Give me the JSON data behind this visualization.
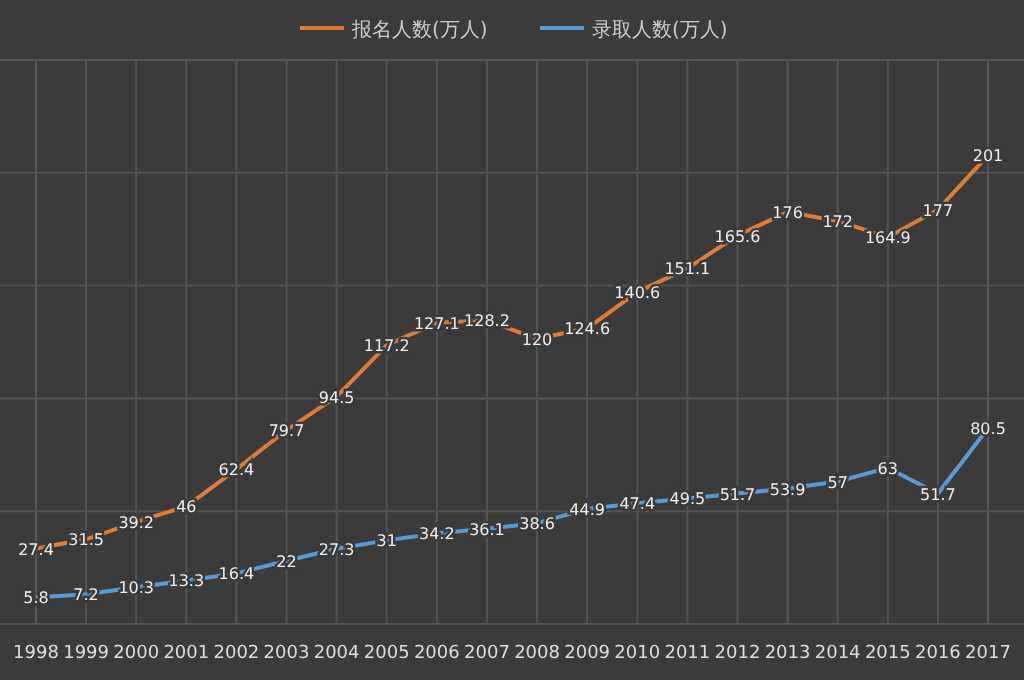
{
  "chart_data": {
    "type": "line",
    "categories": [
      "1998",
      "1999",
      "2000",
      "2001",
      "2002",
      "2003",
      "2004",
      "2005",
      "2006",
      "2007",
      "2008",
      "2009",
      "2010",
      "2011",
      "2012",
      "2013",
      "2014",
      "2015",
      "2016",
      "2017"
    ],
    "series": [
      {
        "name": "报名人数(万人)",
        "color": "#e07b39",
        "values": [
          27.4,
          31.5,
          39.2,
          46,
          62.4,
          79.7,
          94.5,
          117.2,
          127.1,
          128.2,
          120,
          124.6,
          140.6,
          151.1,
          165.6,
          176,
          172,
          164.9,
          177,
          201
        ]
      },
      {
        "name": "录取人数(万人)",
        "color": "#5b9bd5",
        "values": [
          5.8,
          7.2,
          10.3,
          13.3,
          16.4,
          22,
          27.3,
          31,
          34.2,
          36.1,
          38.6,
          44.9,
          47.4,
          49.5,
          51.7,
          53.9,
          57,
          63,
          51.7,
          80.5
        ]
      }
    ],
    "relative": false,
    "data_labels": true,
    "grid": true,
    "legend": "top",
    "marker": "none",
    "line_style": "solid"
  }
}
